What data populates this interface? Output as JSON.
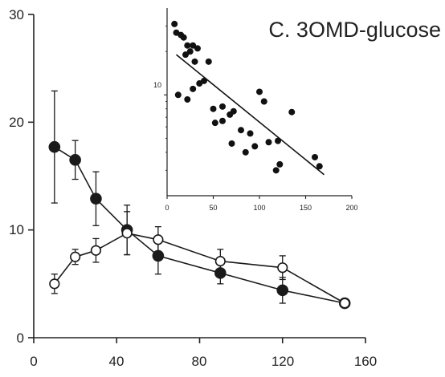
{
  "chart_data": [
    {
      "type": "line",
      "title": "",
      "xlabel": "",
      "ylabel": "",
      "xlim": [
        0,
        160
      ],
      "ylim": [
        0,
        30
      ],
      "xticks": [
        "0",
        "40",
        "80",
        "120",
        "160"
      ],
      "yticks": [
        "0",
        "10",
        "20",
        "30"
      ],
      "grid": false,
      "legend": "none",
      "series": [
        {
          "marker": "filled-circle",
          "color": "#1a1a1a",
          "points": [
            {
              "x": 10,
              "y": 17.7,
              "err": 5.2
            },
            {
              "x": 20,
              "y": 16.5,
              "err": 1.8
            },
            {
              "x": 30,
              "y": 12.9,
              "err": 2.5
            },
            {
              "x": 45,
              "y": 10.0,
              "err": 2.3
            },
            {
              "x": 60,
              "y": 7.6,
              "err": 1.7
            },
            {
              "x": 90,
              "y": 6.0,
              "err": 1.0
            },
            {
              "x": 120,
              "y": 4.4,
              "err": 1.2
            },
            {
              "x": 150,
              "y": 3.2,
              "err": 0.3
            }
          ]
        },
        {
          "marker": "open-circle",
          "color": "#1a1a1a",
          "points": [
            {
              "x": 10,
              "y": 5.0,
              "err": 0.9
            },
            {
              "x": 20,
              "y": 7.5,
              "err": 0.7
            },
            {
              "x": 30,
              "y": 8.1,
              "err": 1.1
            },
            {
              "x": 45,
              "y": 9.7,
              "err": 2.0
            },
            {
              "x": 60,
              "y": 9.1,
              "err": 1.2
            },
            {
              "x": 90,
              "y": 7.1,
              "err": 1.1
            },
            {
              "x": 120,
              "y": 6.5,
              "err": 1.1
            },
            {
              "x": 150,
              "y": 3.2,
              "err": 0.3
            }
          ]
        }
      ]
    },
    {
      "type": "scatter",
      "title": "C. 3OMD-glucose",
      "xlabel": "",
      "ylabel": "",
      "xlim": [
        0,
        200
      ],
      "yscale": "log",
      "ylim": [
        2,
        40
      ],
      "xticks": [
        "0",
        "50",
        "100",
        "150",
        "200"
      ],
      "yticks": [
        "10"
      ],
      "grid": false,
      "points": [
        {
          "x": 8,
          "y": 31
        },
        {
          "x": 10,
          "y": 27
        },
        {
          "x": 15,
          "y": 26
        },
        {
          "x": 18,
          "y": 25
        },
        {
          "x": 22,
          "y": 22
        },
        {
          "x": 20,
          "y": 19
        },
        {
          "x": 25,
          "y": 20
        },
        {
          "x": 28,
          "y": 22
        },
        {
          "x": 33,
          "y": 21
        },
        {
          "x": 30,
          "y": 17
        },
        {
          "x": 45,
          "y": 17
        },
        {
          "x": 12,
          "y": 10
        },
        {
          "x": 22,
          "y": 9.3
        },
        {
          "x": 28,
          "y": 11
        },
        {
          "x": 35,
          "y": 12
        },
        {
          "x": 40,
          "y": 12.5
        },
        {
          "x": 50,
          "y": 8.0
        },
        {
          "x": 60,
          "y": 8.3
        },
        {
          "x": 68,
          "y": 7.3
        },
        {
          "x": 72,
          "y": 7.7
        },
        {
          "x": 52,
          "y": 6.4
        },
        {
          "x": 60,
          "y": 6.6
        },
        {
          "x": 70,
          "y": 4.6
        },
        {
          "x": 80,
          "y": 5.7
        },
        {
          "x": 85,
          "y": 4.0
        },
        {
          "x": 90,
          "y": 5.4
        },
        {
          "x": 95,
          "y": 4.4
        },
        {
          "x": 100,
          "y": 10.5
        },
        {
          "x": 105,
          "y": 9.0
        },
        {
          "x": 110,
          "y": 4.7
        },
        {
          "x": 118,
          "y": 3.0
        },
        {
          "x": 122,
          "y": 3.3
        },
        {
          "x": 135,
          "y": 7.6
        },
        {
          "x": 120,
          "y": 4.8
        },
        {
          "x": 160,
          "y": 3.7
        },
        {
          "x": 165,
          "y": 3.2
        }
      ],
      "fit_line": [
        {
          "x": 10,
          "y": 19
        },
        {
          "x": 170,
          "y": 2.8
        }
      ]
    }
  ]
}
